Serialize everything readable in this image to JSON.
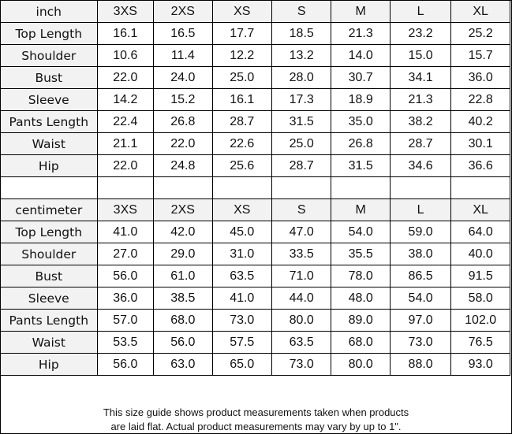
{
  "sizes": [
    "3XS",
    "2XS",
    "XS",
    "S",
    "M",
    "L",
    "XL"
  ],
  "tables": [
    {
      "unit": "inch",
      "rows": [
        {
          "label": "Top Length",
          "values": [
            "16.1",
            "16.5",
            "17.7",
            "18.5",
            "21.3",
            "23.2",
            "25.2"
          ]
        },
        {
          "label": "Shoulder",
          "values": [
            "10.6",
            "11.4",
            "12.2",
            "13.2",
            "14.0",
            "15.0",
            "15.7"
          ]
        },
        {
          "label": "Bust",
          "values": [
            "22.0",
            "24.0",
            "25.0",
            "28.0",
            "30.7",
            "34.1",
            "36.0"
          ]
        },
        {
          "label": "Sleeve",
          "values": [
            "14.2",
            "15.2",
            "16.1",
            "17.3",
            "18.9",
            "21.3",
            "22.8"
          ]
        },
        {
          "label": "Pants Length",
          "values": [
            "22.4",
            "26.8",
            "28.7",
            "31.5",
            "35.0",
            "38.2",
            "40.2"
          ]
        },
        {
          "label": "Waist",
          "values": [
            "21.1",
            "22.0",
            "22.6",
            "25.0",
            "26.8",
            "28.7",
            "30.1"
          ]
        },
        {
          "label": "Hip",
          "values": [
            "22.0",
            "24.8",
            "25.6",
            "28.7",
            "31.5",
            "34.6",
            "36.6"
          ]
        }
      ]
    },
    {
      "unit": "centimeter",
      "rows": [
        {
          "label": "Top Length",
          "values": [
            "41.0",
            "42.0",
            "45.0",
            "47.0",
            "54.0",
            "59.0",
            "64.0"
          ]
        },
        {
          "label": "Shoulder",
          "values": [
            "27.0",
            "29.0",
            "31.0",
            "33.5",
            "35.5",
            "38.0",
            "40.0"
          ]
        },
        {
          "label": "Bust",
          "values": [
            "56.0",
            "61.0",
            "63.5",
            "71.0",
            "78.0",
            "86.5",
            "91.5"
          ]
        },
        {
          "label": "Sleeve",
          "values": [
            "36.0",
            "38.5",
            "41.0",
            "44.0",
            "48.0",
            "54.0",
            "58.0"
          ]
        },
        {
          "label": "Pants Length",
          "values": [
            "57.0",
            "68.0",
            "73.0",
            "80.0",
            "89.0",
            "97.0",
            "102.0"
          ]
        },
        {
          "label": "Waist",
          "values": [
            "53.5",
            "56.0",
            "57.5",
            "63.5",
            "68.0",
            "73.0",
            "76.5"
          ]
        },
        {
          "label": "Hip",
          "values": [
            "56.0",
            "63.0",
            "65.0",
            "73.0",
            "80.0",
            "88.0",
            "93.0"
          ]
        }
      ]
    }
  ],
  "footer": {
    "line1": "This size guide shows product measurements taken when products",
    "line2": "are laid flat. Actual product measurements may vary by up to 1\"."
  }
}
